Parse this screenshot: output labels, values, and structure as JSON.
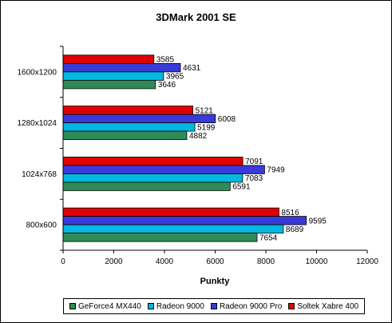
{
  "chart_data": {
    "type": "bar",
    "orientation": "horizontal",
    "title": "3DMark 2001 SE",
    "xlabel": "Punkty",
    "ylabel": "",
    "categories": [
      "1600x1200",
      "1280x1024",
      "1024x768",
      "800x600"
    ],
    "xlim": [
      0,
      12000
    ],
    "x_ticks": [
      "0",
      "2000",
      "4000",
      "6000",
      "8000",
      "10000",
      "12000"
    ],
    "grid": false,
    "legend_position": "bottom",
    "series": [
      {
        "name": "GeForce4 MX440",
        "color": "#2e8b57",
        "values": [
          3646,
          4882,
          6591,
          7654
        ]
      },
      {
        "name": "Radeon 9000",
        "color": "#00b8e0",
        "values": [
          3965,
          5199,
          7083,
          8689
        ]
      },
      {
        "name": "Radeon 9000 Pro",
        "color": "#3a3ad8",
        "values": [
          4631,
          6008,
          7949,
          9595
        ]
      },
      {
        "name": "Soltek Xabre 400",
        "color": "#e00000",
        "values": [
          3585,
          5121,
          7091,
          8516
        ]
      }
    ]
  }
}
